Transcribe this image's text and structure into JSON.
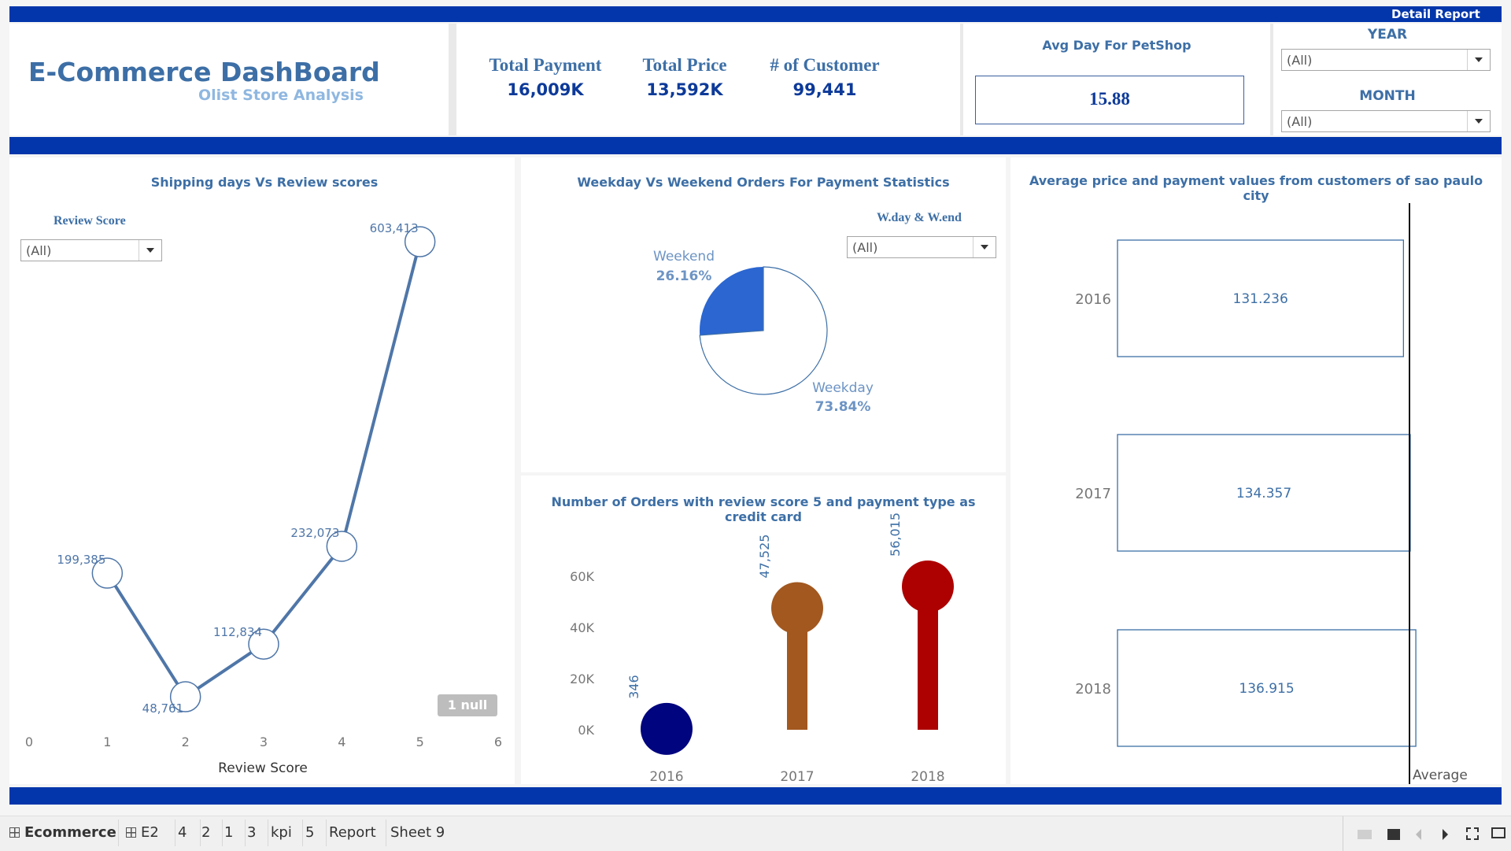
{
  "header": {
    "title": "E-Commerce DashBoard",
    "subtitle": "Olist Store Analysis",
    "detail_report": "Detail Report"
  },
  "kpis": [
    {
      "label": "Total Payment",
      "value": "16,009K"
    },
    {
      "label": "Total Price",
      "value": "13,592K"
    },
    {
      "label": "# of Customer",
      "value": "99,441"
    }
  ],
  "avg_day": {
    "label": "Avg Day For PetShop",
    "value": "15.88"
  },
  "filters": {
    "year": {
      "label": "YEAR",
      "value": "(All)"
    },
    "month": {
      "label": "MONTH",
      "value": "(All)"
    },
    "review_score": {
      "label": "Review Score",
      "value": "(All)"
    },
    "wday_wend": {
      "label": "W.day & W.end",
      "value": "(All)"
    }
  },
  "colors": {
    "band": "#0336ab",
    "line": "#4f76a8",
    "pie_weekend": "#2b66d1",
    "lollipop_2016": "#00047e",
    "lollipop_2017": "#a2581f",
    "lollipop_2018": "#ad0000"
  },
  "chart_data": [
    {
      "type": "line",
      "title": "Shipping days Vs Review scores",
      "xlabel": "Review Score",
      "ylabel": "",
      "x": [
        1,
        2,
        3,
        4,
        5
      ],
      "values": [
        199385,
        48761,
        112834,
        232073,
        603413
      ],
      "labels": [
        "199,385",
        "48,761",
        "112,834",
        "232,073",
        "603,413"
      ],
      "xticks": [
        "0",
        "1",
        "2",
        "3",
        "4",
        "5",
        "6"
      ],
      "xlim": [
        0,
        6
      ],
      "null_badge": "1 null"
    },
    {
      "type": "pie",
      "title": "Weekday Vs Weekend Orders For Payment Statistics",
      "slices": [
        {
          "name": "Weekend",
          "value": 26.16,
          "label": "26.16%"
        },
        {
          "name": "Weekday",
          "value": 73.84,
          "label": "73.84%"
        }
      ]
    },
    {
      "type": "bar",
      "title": "Number of Orders with review score 5 and payment type as credit card",
      "categories": [
        "2016",
        "2017",
        "2018"
      ],
      "values": [
        346,
        47525,
        56015
      ],
      "labels": [
        "346",
        "47,525",
        "56,015"
      ],
      "yticks": [
        "0K",
        "20K",
        "40K",
        "60K"
      ],
      "ylim": [
        0,
        60000
      ]
    },
    {
      "type": "table",
      "title": "Average price and payment values from customers of sao paulo city",
      "categories": [
        "2016",
        "2017",
        "2018"
      ],
      "values": [
        131.236,
        134.357,
        136.915
      ],
      "labels": [
        "131.236",
        "134.357",
        "136.915"
      ],
      "xlabel": "Average"
    }
  ],
  "tabs": [
    {
      "label": "Ecommerce",
      "icon": "grid-icon",
      "active": true
    },
    {
      "label": "E2",
      "icon": "grid-icon"
    },
    {
      "label": "4"
    },
    {
      "label": "2"
    },
    {
      "label": "1"
    },
    {
      "label": "3"
    },
    {
      "label": "kpi"
    },
    {
      "label": "5"
    },
    {
      "label": "Report"
    },
    {
      "label": "Sheet 9"
    }
  ]
}
